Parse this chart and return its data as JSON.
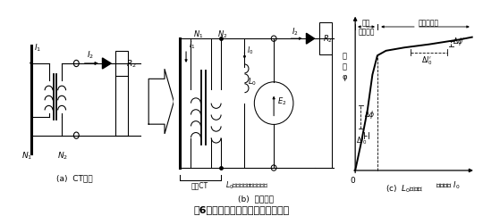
{
  "title": "第6図　鉄心飽和する場合の説明図",
  "sub_a": "(a)  CT回路",
  "sub_b": "(b)  等価回路",
  "sub_c": "(c)  $L_0$の特性",
  "bg_color": "#ffffff",
  "fig_width": 5.4,
  "fig_height": 2.42,
  "dpi": 100,
  "label_unsaturated": "磁束\n未飽和域",
  "label_saturated": "磁束飽和域",
  "label_phi_axis": "磁\n束\nφ",
  "label_x_axis": "励磁電流 $I_0$",
  "label_dphi_prime": "$\\Delta\\phi^{\\prime}$",
  "label_dI0_prime": "$\\Delta I_0^{\\prime}$",
  "label_dphi": "$\\Delta\\phi$",
  "label_dI0": "$\\Delta I_0$",
  "label_L0_text": "$L_0$：励磁インダクタンス",
  "label_idealCT": "理想CT",
  "label_N1": "$N_1$",
  "label_N2": "$N_2$",
  "label_I1": "$I_1$",
  "label_I2": "$I_2$",
  "label_I0": "$I_0$",
  "label_E2": "$E_2$",
  "label_L0": "$L_0$",
  "label_R2": "$R_2$"
}
